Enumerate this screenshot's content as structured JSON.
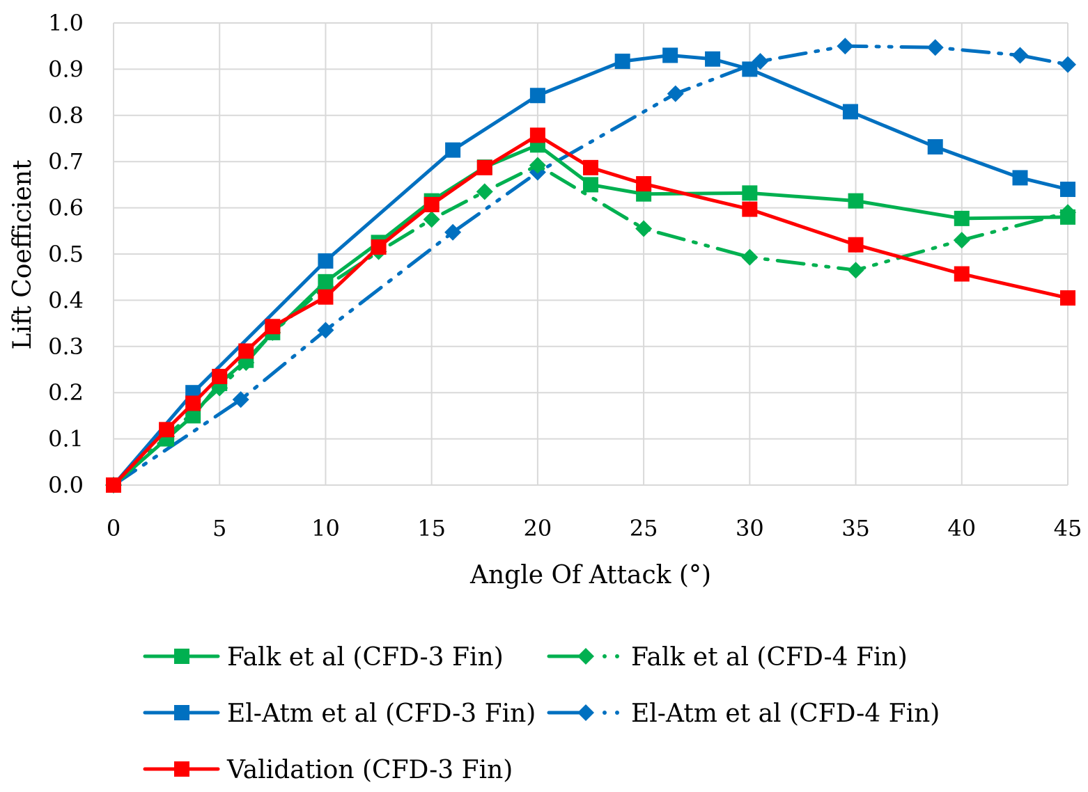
{
  "chart_data": {
    "type": "line",
    "title": "",
    "xlabel": "Angle Of Attack (°)",
    "ylabel": "Lift Coefficient",
    "xlim": [
      0,
      45
    ],
    "ylim": [
      0,
      1.0
    ],
    "x_ticks": [
      "0",
      "5",
      "10",
      "15",
      "20",
      "25",
      "30",
      "35",
      "40",
      "45"
    ],
    "y_ticks": [
      "0.0",
      "0.1",
      "0.2",
      "0.3",
      "0.4",
      "0.5",
      "0.6",
      "0.7",
      "0.8",
      "0.9",
      "1.0"
    ],
    "grid": true,
    "legend_position": "bottom",
    "series": [
      {
        "name": "Falk et al (CFD-3 Fin)",
        "color": "#00b050",
        "marker": "square",
        "dash": "solid",
        "x": [
          0,
          2.5,
          3.75,
          5,
          6.25,
          7.5,
          10,
          12.5,
          15,
          17.5,
          20,
          22.5,
          25,
          30,
          35,
          40,
          45
        ],
        "y": [
          0.0,
          0.1,
          0.15,
          0.22,
          0.27,
          0.33,
          0.44,
          0.525,
          0.615,
          0.688,
          0.736,
          0.65,
          0.63,
          0.632,
          0.615,
          0.577,
          0.58
        ]
      },
      {
        "name": "Falk et al (CFD-4 Fin)",
        "color": "#00b050",
        "marker": "diamond",
        "dash": "dashdot",
        "x": [
          0,
          2.5,
          5,
          6.25,
          7.5,
          10,
          12.5,
          15,
          17.5,
          20,
          25,
          30,
          35,
          40,
          45
        ],
        "y": [
          0.0,
          0.105,
          0.21,
          0.265,
          0.33,
          0.43,
          0.505,
          0.575,
          0.635,
          0.692,
          0.555,
          0.493,
          0.465,
          0.53,
          0.59
        ]
      },
      {
        "name": "El-Atm et al (CFD-3 Fin)",
        "color": "#0070c0",
        "marker": "square",
        "dash": "solid",
        "x": [
          0,
          3.75,
          10,
          16,
          20,
          24,
          26.25,
          28.25,
          30,
          34.75,
          38.75,
          42.75,
          45
        ],
        "y": [
          0.0,
          0.2,
          0.485,
          0.725,
          0.843,
          0.917,
          0.93,
          0.922,
          0.9,
          0.808,
          0.732,
          0.665,
          0.64
        ]
      },
      {
        "name": "El-Atm et al (CFD-4 Fin)",
        "color": "#0070c0",
        "marker": "diamond",
        "dash": "dashdot",
        "x": [
          0,
          6,
          10,
          16,
          20,
          26.5,
          30.5,
          34.5,
          38.75,
          42.75,
          45
        ],
        "y": [
          0.0,
          0.185,
          0.335,
          0.547,
          0.677,
          0.847,
          0.917,
          0.95,
          0.947,
          0.93,
          0.91
        ]
      },
      {
        "name": "Validation (CFD-3 Fin)",
        "color": "#ff0000",
        "marker": "square",
        "dash": "solid",
        "x": [
          0,
          2.5,
          3.75,
          5,
          6.25,
          7.5,
          10,
          12.5,
          15,
          17.5,
          20,
          22.5,
          25,
          30,
          35,
          40,
          45
        ],
        "y": [
          0.0,
          0.12,
          0.177,
          0.235,
          0.29,
          0.343,
          0.407,
          0.515,
          0.607,
          0.687,
          0.757,
          0.687,
          0.652,
          0.597,
          0.52,
          0.457,
          0.405
        ]
      }
    ]
  }
}
